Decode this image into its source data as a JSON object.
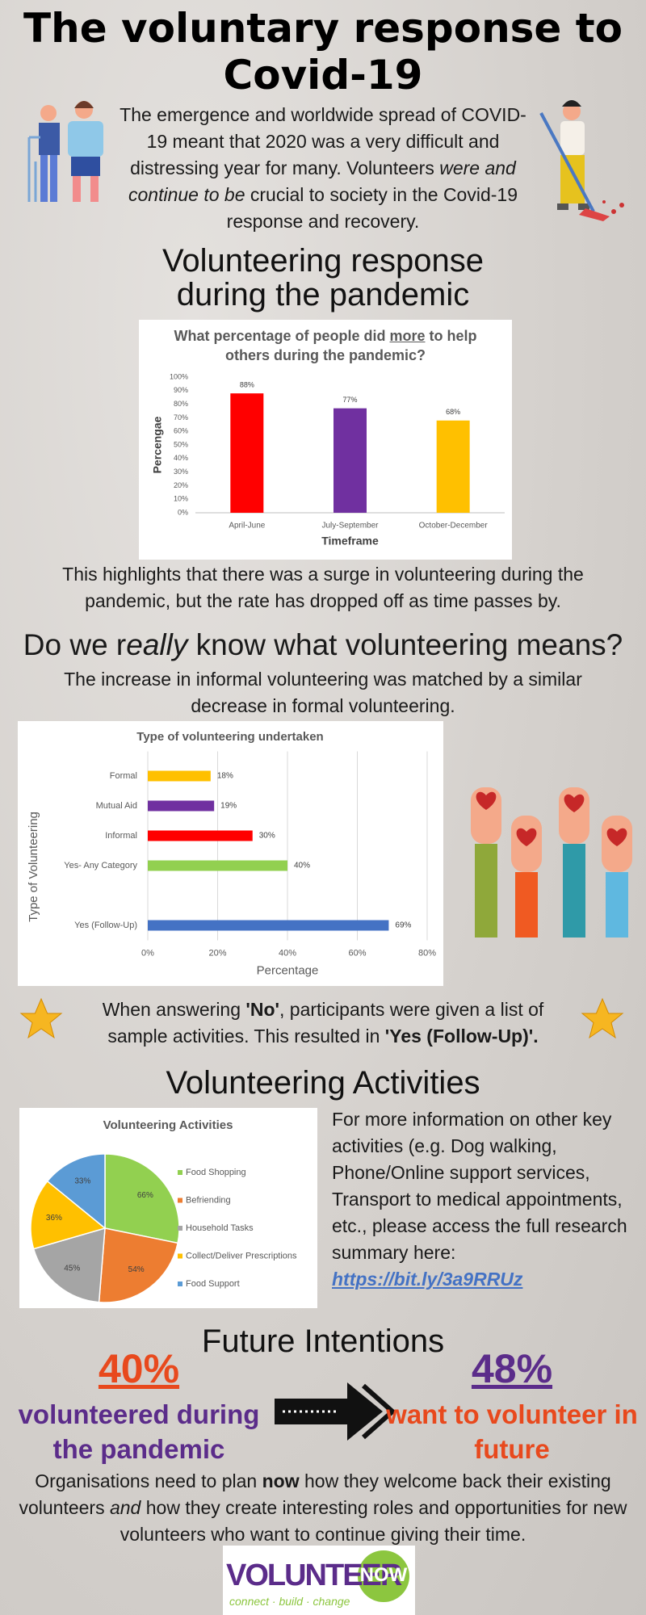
{
  "header": {
    "title": "The voluntary response to Covid-19",
    "intro": [
      "The emergence and worldwide spread of COVID-19 meant that 2020 was a very difficult and distressing year for many. Volunteers ",
      "were and continue to be",
      " crucial to society in the Covid-19 response and recovery."
    ]
  },
  "section1": {
    "heading": "Volunteering response during the pandemic",
    "caption": "This highlights that there was a surge in volunteering during the pandemic, but the rate has dropped off as time passes by."
  },
  "section2": {
    "heading": [
      "Do we r",
      "eally",
      " know what volunteering means?"
    ],
    "text": "The increase in informal volunteering was matched by a similar decrease in formal volunteering.",
    "note": [
      "When answering ",
      "'No'",
      ", participants were given a list of sample activities. This resulted in ",
      "'Yes (Follow-Up)'."
    ]
  },
  "section3": {
    "heading": "Volunteering Activities",
    "text": "For more information on other key activities (e.g. Dog walking, Phone/Online support services, Transport to medical appointments, etc., please access the full research summary here:",
    "link": "https://bit.ly/3a9RRUz"
  },
  "section4": {
    "heading": "Future Intentions",
    "stat_left": {
      "value": "40%",
      "label": "volunteered during the pandemic"
    },
    "stat_right": {
      "value": "48%",
      "label": "want to volunteer in future"
    },
    "closing": [
      "Organisations need to plan ",
      "now",
      " how they welcome back their existing volunteers ",
      "and",
      " how they create interesting roles and opportunities for new volunteers who want to continue giving their time."
    ]
  },
  "logo": {
    "word1": "VOLUNTEER",
    "word2": "NOW",
    "tagline": "connect · build · change"
  },
  "chart_data": [
    {
      "type": "bar",
      "title": [
        "What percentage of people did ",
        "more",
        " to help others during the pandemic?"
      ],
      "categories": [
        "April-June",
        "July-September",
        "October-December"
      ],
      "values": [
        88,
        77,
        68
      ],
      "value_labels": [
        "88%",
        "77%",
        "68%"
      ],
      "colors": [
        "#ff0000",
        "#7030a0",
        "#ffc000"
      ],
      "ylim": [
        0,
        100
      ],
      "yticks": [
        {
          "value": 0,
          "label": "0%"
        },
        {
          "value": 10,
          "label": "10%"
        },
        {
          "value": 20,
          "label": "20%"
        },
        {
          "value": 30,
          "label": "30%"
        },
        {
          "value": 40,
          "label": "40%"
        },
        {
          "value": 50,
          "label": "50%"
        },
        {
          "value": 60,
          "label": "60%"
        },
        {
          "value": 70,
          "label": "70%"
        },
        {
          "value": 80,
          "label": "80%"
        },
        {
          "value": 90,
          "label": "90%"
        },
        {
          "value": 100,
          "label": "100%"
        }
      ],
      "xlabel": "Timeframe",
      "ylabel": "Percengae",
      "grid": false
    },
    {
      "type": "barh",
      "title": "Type of volunteering undertaken",
      "categories": [
        "Formal",
        "Mutual Aid",
        "Informal",
        "Yes- Any Category",
        null,
        "Yes (Follow-Up)"
      ],
      "values": [
        18,
        19,
        30,
        40,
        null,
        69
      ],
      "value_labels": [
        "18%",
        "19%",
        "30%",
        "40%",
        null,
        "69%"
      ],
      "colors": [
        "#ffc000",
        "#7030a0",
        "#ff0000",
        "#92d050",
        null,
        "#4472c4"
      ],
      "xlim": [
        0,
        80
      ],
      "xticks": [
        {
          "value": 0,
          "label": "0%"
        },
        {
          "value": 20,
          "label": "20%"
        },
        {
          "value": 40,
          "label": "40%"
        },
        {
          "value": 60,
          "label": "60%"
        },
        {
          "value": 80,
          "label": "80%"
        }
      ],
      "xlabel": "Percentage",
      "ylabel": "Type of Volunteering",
      "grid": true
    },
    {
      "type": "pie",
      "title": "Volunteering  Activities",
      "categories": [
        "Food Shopping",
        "Befriending",
        "Household Tasks",
        "Collect/Deliver Prescriptions",
        "Food Support"
      ],
      "values": [
        66,
        54,
        45,
        36,
        33
      ],
      "value_labels": [
        "66%",
        "54%",
        "45%",
        "36%",
        "33%"
      ],
      "colors": [
        "#92d050",
        "#ed7d31",
        "#a5a5a5",
        "#ffc000",
        "#5b9bd5"
      ],
      "legend": "right"
    }
  ]
}
